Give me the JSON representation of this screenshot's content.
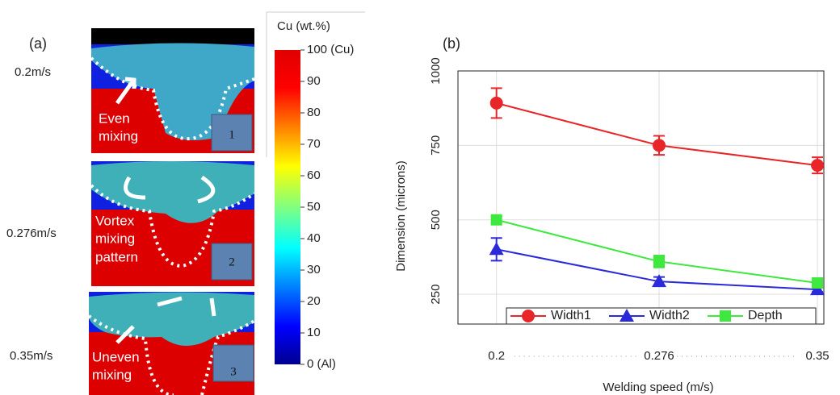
{
  "panel_a": {
    "label": "(a)",
    "rows": [
      {
        "speed": "0.2m/s",
        "caption": [
          "Even",
          "mixing"
        ],
        "number": "1"
      },
      {
        "speed": "0.276m/s",
        "caption": [
          "Vortex",
          "mixing",
          "pattern"
        ],
        "number": "2"
      },
      {
        "speed": "0.35m/s",
        "caption": [
          "Uneven",
          "mixing"
        ],
        "number": "3"
      }
    ],
    "colorbar": {
      "title": "Cu (wt.%)",
      "lim": [
        0,
        100
      ],
      "ticks": [
        {
          "value": 100,
          "label": "100 (Cu)"
        },
        90,
        80,
        70,
        60,
        50,
        40,
        30,
        20,
        10,
        {
          "value": 0,
          "label": "0 (Al)"
        }
      ]
    }
  },
  "chart_data": {
    "type": "line",
    "panel_label": "(b)",
    "x_label": "Welding speed (m/s)",
    "y_label": "Dimension (microns)",
    "x": [
      0.2,
      0.276,
      0.35
    ],
    "xlim": [
      0.182,
      0.353
    ],
    "xticks": [
      0.2,
      0.276,
      0.35
    ],
    "ylim": [
      150,
      1000
    ],
    "yticks": [
      250,
      500,
      750,
      1000
    ],
    "grid": true,
    "legend": "bottom",
    "series": [
      {
        "name": "Width1",
        "color": "#e8262a",
        "marker": "circle",
        "values": [
          892,
          750,
          683
        ],
        "errors": [
          50,
          32,
          27
        ]
      },
      {
        "name": "Width2",
        "color": "#2a2ad8",
        "marker": "triangle",
        "values": [
          401,
          293,
          266
        ],
        "errors": [
          38,
          15,
          8
        ]
      },
      {
        "name": "Depth",
        "color": "#3ee83e",
        "marker": "square",
        "values": [
          500,
          360,
          288
        ],
        "errors": [
          12,
          20,
          12
        ]
      }
    ]
  }
}
